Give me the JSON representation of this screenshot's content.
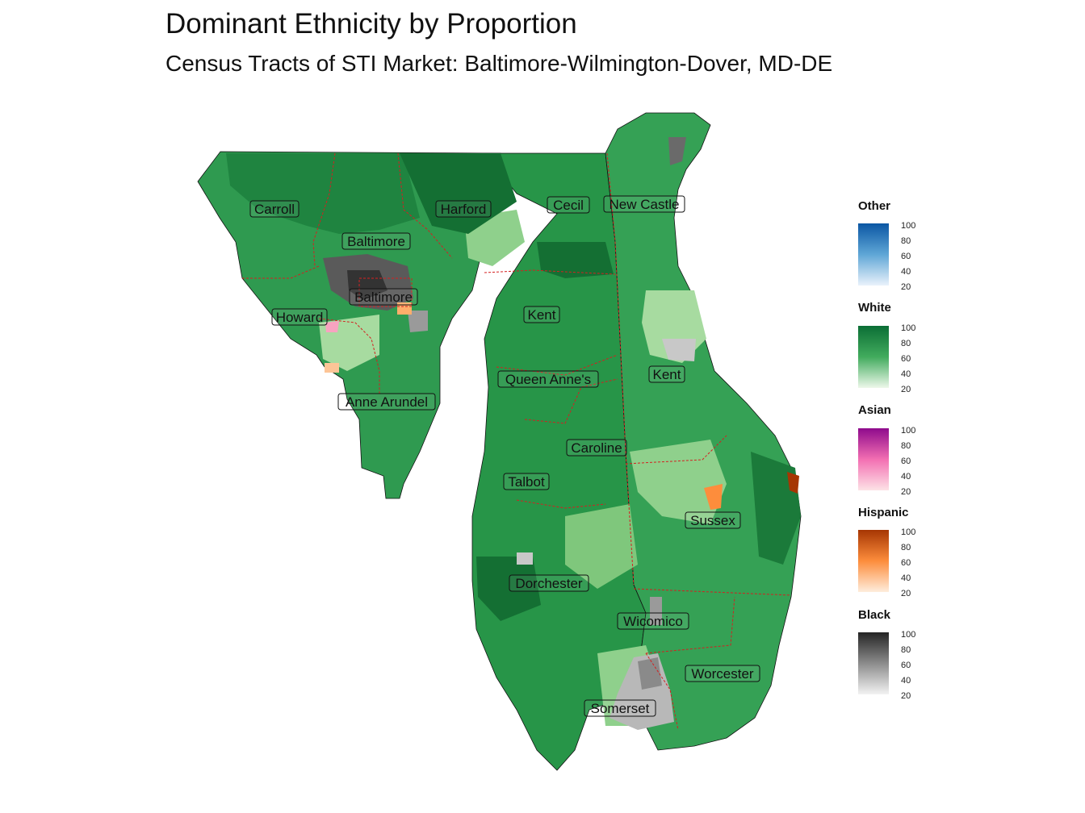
{
  "title": "Dominant Ethnicity by Proportion",
  "subtitle": "Census Tracts of STI Market: Baltimore-Wilmington-Dover, MD-DE",
  "counties": [
    {
      "name": "Carroll"
    },
    {
      "name": "Baltimore"
    },
    {
      "name": "Harford"
    },
    {
      "name": "Cecil"
    },
    {
      "name": "New Castle"
    },
    {
      "name": "Baltimore"
    },
    {
      "name": "Howard"
    },
    {
      "name": "Kent"
    },
    {
      "name": "Queen Anne's"
    },
    {
      "name": "Kent"
    },
    {
      "name": "Anne Arundel"
    },
    {
      "name": "Caroline"
    },
    {
      "name": "Talbot"
    },
    {
      "name": "Sussex"
    },
    {
      "name": "Dorchester"
    },
    {
      "name": "Wicomico"
    },
    {
      "name": "Worcester"
    },
    {
      "name": "Somerset"
    }
  ],
  "legends": [
    {
      "title": "Other",
      "ticks": [
        "100",
        "80",
        "60",
        "40",
        "20"
      ],
      "color_high": "#0b57a4",
      "color_low": "#eaf2fb"
    },
    {
      "title": "White",
      "ticks": [
        "100",
        "80",
        "60",
        "40",
        "20"
      ],
      "color_high": "#0b6e35",
      "color_low": "#edf8ea"
    },
    {
      "title": "Asian",
      "ticks": [
        "100",
        "80",
        "60",
        "40",
        "20"
      ],
      "color_high": "#8e0a8c",
      "color_low": "#fde3e6"
    },
    {
      "title": "Hispanic",
      "ticks": [
        "100",
        "80",
        "60",
        "40",
        "20"
      ],
      "color_high": "#a63603",
      "color_low": "#feeddc"
    },
    {
      "title": "Black",
      "ticks": [
        "100",
        "80",
        "60",
        "40",
        "20"
      ],
      "color_high": "#252525",
      "color_low": "#f3f3f3"
    }
  ]
}
